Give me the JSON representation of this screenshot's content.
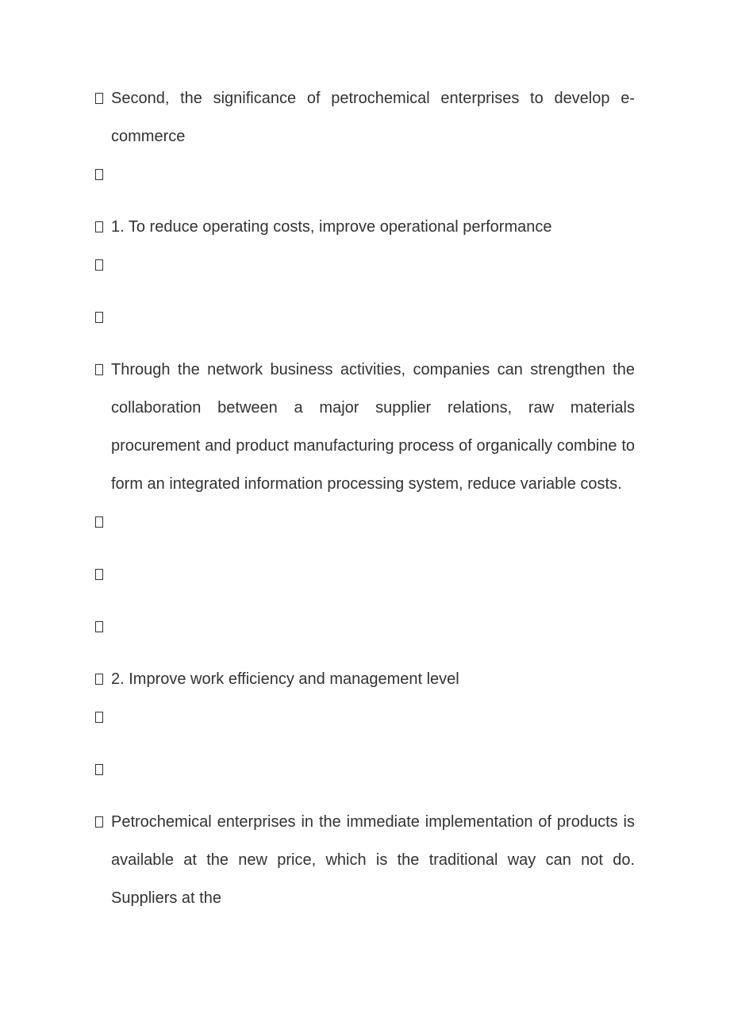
{
  "document": {
    "text_color": "#333333",
    "background_color": "#ffffff",
    "font_size": 20,
    "line_height": 2.4,
    "paragraphs": [
      {
        "type": "bullet_text",
        "text": "Second, the significance of petrochemical enterprises to develop e-commerce",
        "justify": true
      },
      {
        "type": "empty_bullet"
      },
      {
        "type": "bullet_text",
        "text": "1. To reduce operating costs, improve operational performance",
        "justify": true
      },
      {
        "type": "empty_bullet"
      },
      {
        "type": "empty_bullet"
      },
      {
        "type": "bullet_text",
        "text": "Through the network business activities, companies can strengthen the collaboration between a major supplier relations, raw materials procurement and product manufacturing process of organically combine to form an integrated information processing system, reduce variable costs.",
        "justify": true
      },
      {
        "type": "empty_bullet"
      },
      {
        "type": "empty_bullet"
      },
      {
        "type": "empty_bullet"
      },
      {
        "type": "bullet_text",
        "text": "2. Improve work efficiency and management level",
        "justify": false
      },
      {
        "type": "empty_bullet"
      },
      {
        "type": "empty_bullet"
      },
      {
        "type": "bullet_text",
        "text": "Petrochemical enterprises in the immediate implementation of products is available at the new price, which is the traditional way can not do. Suppliers at the",
        "justify": true
      }
    ]
  }
}
